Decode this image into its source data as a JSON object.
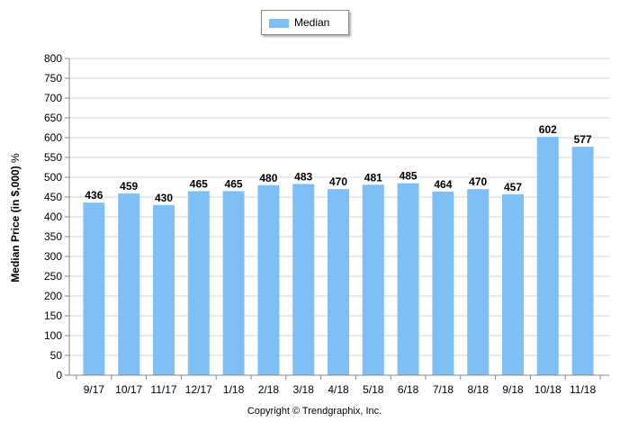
{
  "chart_data": {
    "type": "bar",
    "categories": [
      "9/17",
      "10/17",
      "11/17",
      "12/17",
      "1/18",
      "2/18",
      "3/18",
      "4/18",
      "5/18",
      "6/18",
      "7/18",
      "8/18",
      "9/18",
      "10/18",
      "11/18"
    ],
    "series": [
      {
        "name": "Median",
        "values": [
          436,
          459,
          430,
          465,
          465,
          480,
          483,
          470,
          481,
          485,
          464,
          470,
          457,
          602,
          577
        ]
      }
    ],
    "ylabel": "Median Price (in $,000)",
    "ylabel_suffix": "%",
    "ylim": [
      0,
      800
    ],
    "yticks": [
      0,
      50,
      100,
      150,
      200,
      250,
      300,
      350,
      400,
      450,
      500,
      550,
      600,
      650,
      700,
      750,
      800
    ],
    "grid": true,
    "legend": "top-center",
    "data_labels": true
  },
  "footer": {
    "copyright": "Copyright © Trendgraphix, Inc."
  },
  "colors": {
    "bar": "#7ec0f5",
    "grid": "#d4d4d4",
    "axis": "#888888"
  }
}
